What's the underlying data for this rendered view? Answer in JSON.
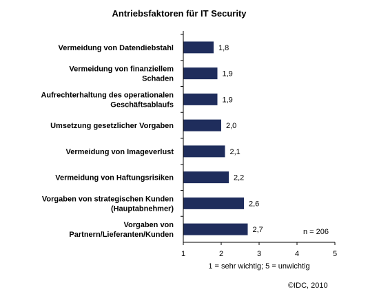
{
  "chart_data": {
    "type": "bar",
    "orientation": "horizontal",
    "title": "Antriebsfaktoren für IT Security",
    "categories": [
      [
        "Vermeidung von Datendiebstahl"
      ],
      [
        "Vermeidung von finanziellem",
        "Schaden"
      ],
      [
        "Aufrechterhaltung des operationalen",
        "Geschäftsablaufs"
      ],
      [
        "Umsetzung  gesetzlicher Vorgaben"
      ],
      [
        "Vermeidung von Imageverlust"
      ],
      [
        "Vermeidung von Haftungsrisiken"
      ],
      [
        "Vorgaben von strategischen Kunden",
        "(Hauptabnehmer)"
      ],
      [
        "Vorgaben von",
        "Partnern/Lieferanten/Kunden"
      ]
    ],
    "values": [
      1.8,
      1.9,
      1.9,
      2.0,
      2.1,
      2.2,
      2.6,
      2.7
    ],
    "value_labels": [
      "1,8",
      "1,9",
      "1,9",
      "2,0",
      "2,1",
      "2,2",
      "2,6",
      "2,7"
    ],
    "xlim": [
      1,
      5
    ],
    "xticks": [
      "1",
      "2",
      "3",
      "4",
      "5"
    ],
    "xlabel": "1 = sehr wichtig;  5 = unwichtig",
    "annotation": "n = 206",
    "source": "©IDC, 2010",
    "bar_color": "#1f2d5c",
    "grid": false,
    "legend": false
  }
}
